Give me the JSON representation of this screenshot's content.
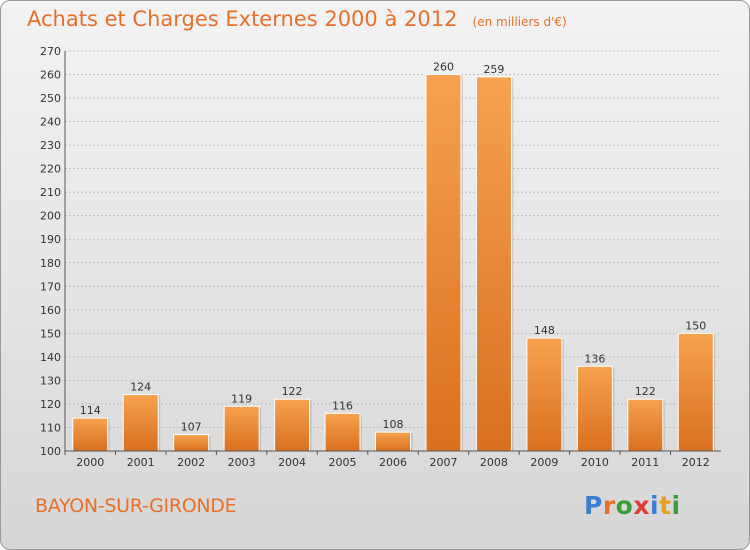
{
  "header": {
    "title": "Achats et Charges Externes 2000 à 2012",
    "subtitle": "(en milliers d'€)"
  },
  "footer": {
    "place": "BAYON-SUR-GIRONDE",
    "logo_text": "Proxiti",
    "logo_colors": [
      "#3a7fd5",
      "#e8702a",
      "#3a9d3a",
      "#e03b3b",
      "#3a7fd5",
      "#e8a020",
      "#3a9d3a"
    ]
  },
  "colors": {
    "bar_light": "#f6a24f",
    "bar_dark": "#d9701f",
    "title": "#e8702a",
    "grid": "#b8b8b8"
  },
  "chart_data": {
    "type": "bar",
    "title": "Achats et Charges Externes 2000 à 2012",
    "subtitle": "(en milliers d'€)",
    "xlabel": "",
    "ylabel": "",
    "categories": [
      "2000",
      "2001",
      "2002",
      "2003",
      "2004",
      "2005",
      "2006",
      "2007",
      "2008",
      "2009",
      "2010",
      "2011",
      "2012"
    ],
    "values": [
      114,
      124,
      107,
      119,
      122,
      116,
      108,
      260,
      259,
      148,
      136,
      122,
      150
    ],
    "ylim": [
      100,
      270
    ],
    "yticks": [
      100,
      110,
      120,
      130,
      140,
      150,
      160,
      170,
      180,
      190,
      200,
      210,
      220,
      230,
      240,
      250,
      260,
      270
    ],
    "grid": true,
    "data_labels": true
  }
}
